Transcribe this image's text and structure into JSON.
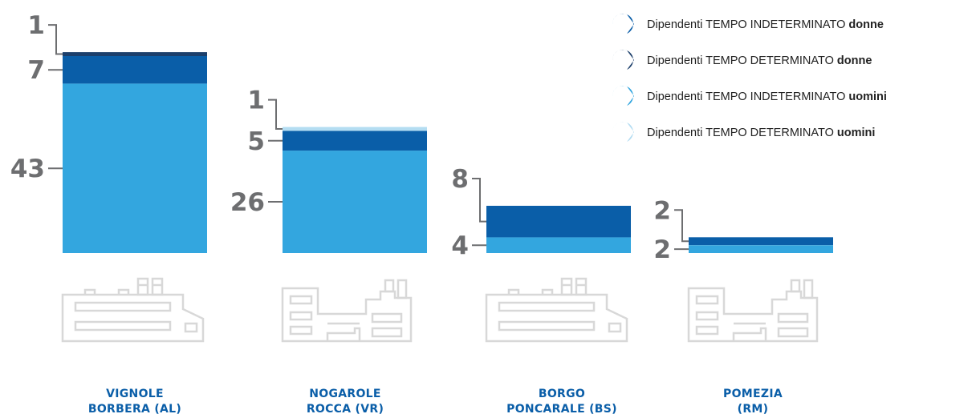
{
  "chart_data": {
    "type": "bar",
    "stacked": true,
    "categories": [
      [
        "VIGNOLE",
        "BORBERA (AL)"
      ],
      [
        "NOGAROLE",
        "ROCCA (VR)"
      ],
      [
        "BORGO",
        "PONCARALE (BS)"
      ],
      [
        "POMEZIA",
        "(RM)"
      ]
    ],
    "series": [
      {
        "key": "ind_uomini",
        "name": "Dipendenti TEMPO INDETERMINATO ",
        "name_bold": "uomini",
        "color": "#33a6df",
        "values": [
          43,
          26,
          4,
          2
        ]
      },
      {
        "key": "ind_donne",
        "name": "Dipendenti TEMPO INDETERMINATO ",
        "name_bold": "donne",
        "color": "#0a5ea8",
        "values": [
          7,
          5,
          8,
          2
        ]
      },
      {
        "key": "det_donne",
        "name": "Dipendenti TEMPO DETERMINATO ",
        "name_bold": "donne",
        "color": "#1c3f6b",
        "values": [
          1,
          0,
          0,
          0
        ]
      },
      {
        "key": "det_uomini",
        "name": "Dipendenti TEMPO DETERMINATO ",
        "name_bold": "uomini",
        "color": "#b4ddf2",
        "values": [
          0,
          1,
          0,
          0
        ]
      }
    ],
    "legend_order": [
      "ind_donne",
      "det_donne",
      "ind_uomini",
      "det_uomini"
    ],
    "legend_position": "top-right",
    "grid": false,
    "axes_visible": false
  }
}
